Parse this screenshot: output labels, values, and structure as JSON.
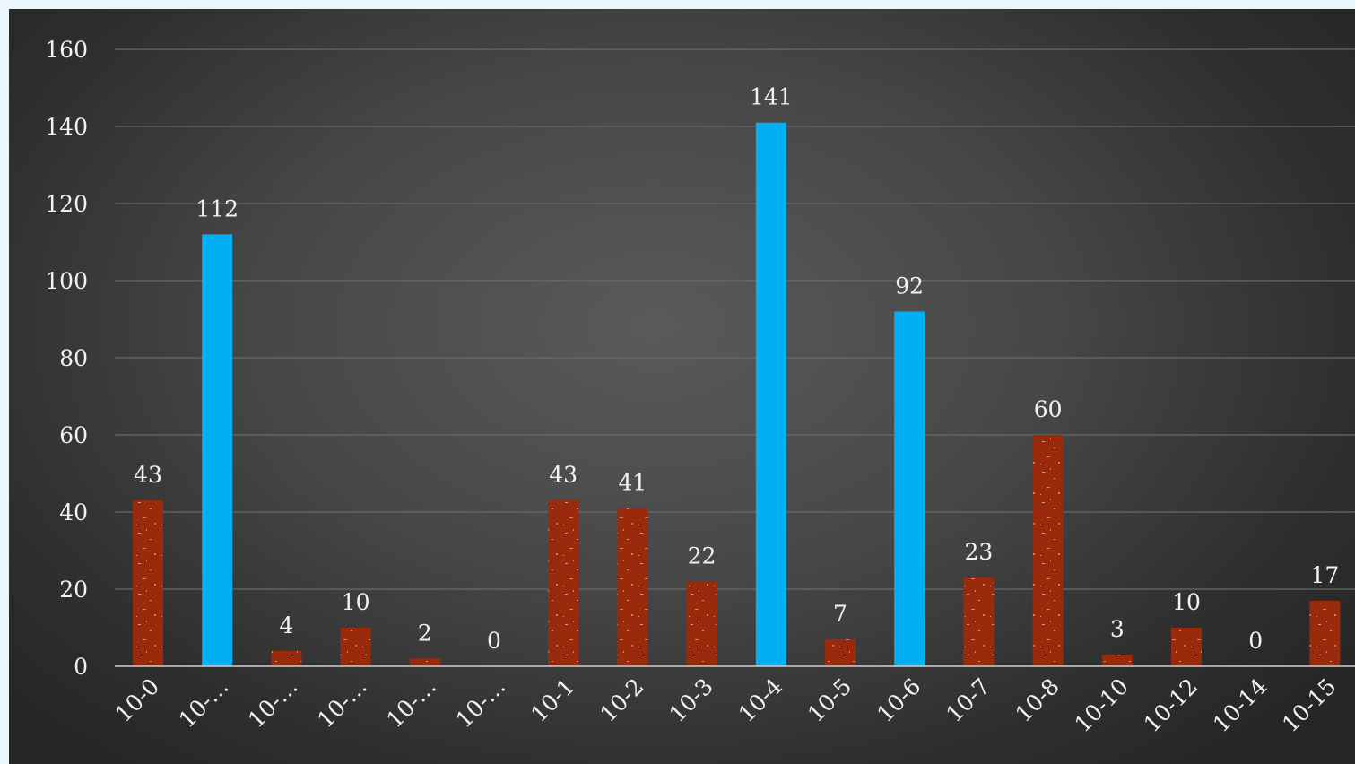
{
  "chart_data": {
    "type": "bar",
    "categories": [
      "10-0",
      "10-…",
      "10-…",
      "10-…",
      "10-…",
      "10-…",
      "10-1",
      "10-2",
      "10-3",
      "10-4",
      "10-5",
      "10-6",
      "10-7",
      "10-8",
      "10-10",
      "10-12",
      "10-14",
      "10-15"
    ],
    "values": [
      43,
      112,
      4,
      10,
      2,
      0,
      43,
      41,
      22,
      141,
      7,
      92,
      23,
      60,
      3,
      10,
      0,
      17
    ],
    "data_labels": [
      "43",
      "112",
      "4",
      "10",
      "2",
      "0",
      "43",
      "41",
      "22",
      "141",
      "7",
      "92",
      "23",
      "60",
      "3",
      "10",
      "0",
      "17"
    ],
    "highlighted": [
      false,
      true,
      false,
      false,
      false,
      false,
      false,
      false,
      false,
      true,
      false,
      true,
      false,
      false,
      false,
      false,
      false,
      false
    ],
    "ylim": [
      0,
      160
    ],
    "yticks": [
      "0",
      "20",
      "40",
      "60",
      "80",
      "100",
      "120",
      "140",
      "160"
    ],
    "grid": true,
    "title": "",
    "xlabel": "",
    "ylabel": "",
    "colors": {
      "bar": "#9a2a0c",
      "highlight": "#00b0f0",
      "gridline": "#6a6a6a",
      "axis": "#cfcfcf",
      "text": "#f2f2f2"
    }
  }
}
